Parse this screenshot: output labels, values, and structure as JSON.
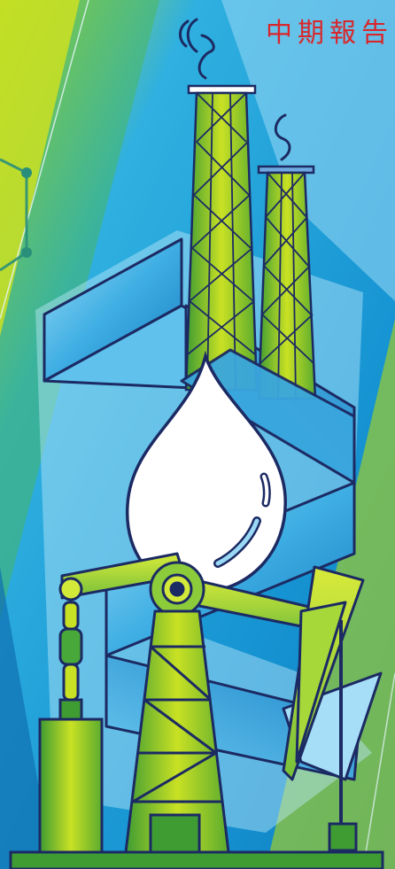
{
  "cover": {
    "title_text": "中期報告",
    "title_color": "#d9262b"
  },
  "colors": {
    "line_dark": "#1c2a63",
    "green_light": "#c8e021",
    "green_dark": "#3c9a34",
    "blue_light": "#7fd2f4",
    "blue_mid": "#2aa7df",
    "blue_dark": "#0e78b8",
    "drop_fill": "#ffffff"
  },
  "illustration": {
    "scene": "oil-refinery-illustration",
    "elements": [
      "smokestack",
      "smokestack",
      "ribbon-arrow",
      "oil-drop",
      "pump-jack"
    ]
  }
}
